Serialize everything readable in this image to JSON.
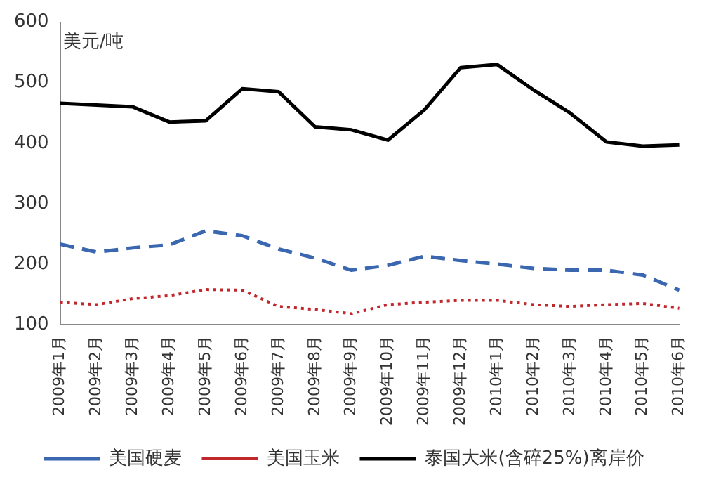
{
  "chart_data": {
    "type": "line",
    "ylabel": "美元/吨",
    "categories": [
      "2009年1月",
      "2009年2月",
      "2009年3月",
      "2009年4月",
      "2009年5月",
      "2009年6月",
      "2009年7月",
      "2009年8月",
      "2009年9月",
      "2009年10月",
      "2009年11月",
      "2009年12月",
      "2010年1月",
      "2010年2月",
      "2010年3月",
      "2010年4月",
      "2010年5月",
      "2010年6月"
    ],
    "series": [
      {
        "name": "美国硬麦",
        "color": "#3a67b0",
        "line_style": "dashed",
        "values": [
          233,
          220,
          227,
          232,
          255,
          247,
          225,
          210,
          190,
          198,
          213,
          206,
          200,
          193,
          190,
          190,
          182,
          157
        ]
      },
      {
        "name": "美国玉米",
        "color": "#c0282d",
        "line_style": "dotted",
        "values": [
          137,
          133,
          143,
          148,
          158,
          157,
          130,
          125,
          118,
          133,
          137,
          140,
          140,
          133,
          130,
          133,
          135,
          127
        ]
      },
      {
        "name": "泰国大米(含碎25%)离岸价",
        "color": "#000000",
        "line_style": "solid",
        "values": [
          466,
          463,
          460,
          435,
          437,
          490,
          485,
          427,
          422,
          405,
          455,
          525,
          530,
          488,
          450,
          402,
          395,
          397
        ]
      }
    ],
    "ylim": [
      100,
      600
    ],
    "yticks": [
      100,
      200,
      300,
      400,
      500,
      600
    ],
    "grid": false,
    "legend": "bottom",
    "marker": "none"
  }
}
